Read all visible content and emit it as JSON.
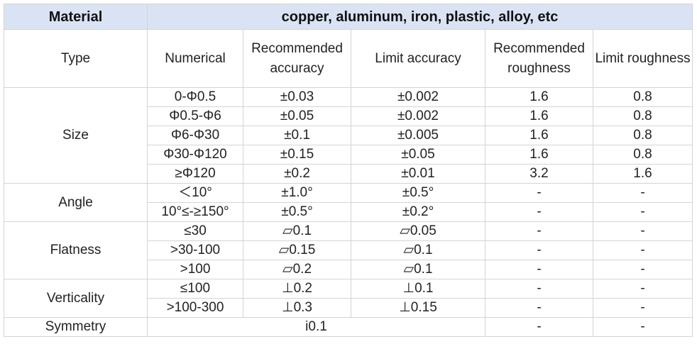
{
  "header": {
    "label": "Material",
    "value": "copper, aluminum, iron, plastic, alloy, etc"
  },
  "columns": [
    "Type",
    "Numerical",
    "Recommended accuracy",
    "Limit accuracy",
    "Recommended roughness",
    "Limit roughness"
  ],
  "groups": [
    {
      "name": "Size",
      "rows": [
        [
          "0-Φ0.5",
          "±0.03",
          "±0.002",
          "1.6",
          "0.8"
        ],
        [
          "Φ0.5-Φ6",
          "±0.05",
          "±0.002",
          "1.6",
          "0.8"
        ],
        [
          "Φ6-Φ30",
          "±0.1",
          "±0.005",
          "1.6",
          "0.8"
        ],
        [
          "Φ30-Φ120",
          "±0.15",
          "±0.05",
          "1.6",
          "0.8"
        ],
        [
          "≥Φ120",
          "±0.2",
          "±0.01",
          "3.2",
          "1.6"
        ]
      ]
    },
    {
      "name": "Angle",
      "rows": [
        [
          "＜10°",
          "±1.0°",
          "±0.5°",
          "-",
          "-"
        ],
        [
          "10°≤-≥150°",
          "±0.5°",
          "±0.2°",
          "-",
          "-"
        ]
      ]
    },
    {
      "name": "Flatness",
      "rows": [
        [
          "≤30",
          "▱0.1",
          "▱0.05",
          "-",
          "-"
        ],
        [
          ">30-100",
          "▱0.15",
          "▱0.1",
          "-",
          "-"
        ],
        [
          ">100",
          "▱0.2",
          "▱0.1",
          "-",
          "-"
        ]
      ]
    },
    {
      "name": "Verticality",
      "rows": [
        [
          "≤100",
          "⊥0.2",
          "⊥0.1",
          "-",
          "-"
        ],
        [
          ">100-300",
          "⊥0.3",
          "⊥0.15",
          "-",
          "-"
        ]
      ]
    },
    {
      "name": "Symmetry",
      "rows": [
        [
          "i0.1",
          "-",
          "-"
        ]
      ]
    }
  ]
}
